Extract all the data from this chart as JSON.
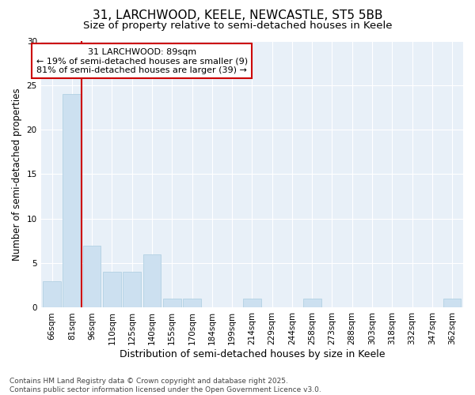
{
  "title": "31, LARCHWOOD, KEELE, NEWCASTLE, ST5 5BB",
  "subtitle": "Size of property relative to semi-detached houses in Keele",
  "xlabel": "Distribution of semi-detached houses by size in Keele",
  "ylabel": "Number of semi-detached properties",
  "categories": [
    "66sqm",
    "81sqm",
    "96sqm",
    "110sqm",
    "125sqm",
    "140sqm",
    "155sqm",
    "170sqm",
    "184sqm",
    "199sqm",
    "214sqm",
    "229sqm",
    "244sqm",
    "258sqm",
    "273sqm",
    "288sqm",
    "303sqm",
    "318sqm",
    "332sqm",
    "347sqm",
    "362sqm"
  ],
  "values": [
    3,
    24,
    7,
    4,
    4,
    6,
    1,
    1,
    0,
    0,
    1,
    0,
    0,
    1,
    0,
    0,
    0,
    0,
    0,
    0,
    1
  ],
  "bar_color": "#cce0f0",
  "bar_edge_color": "#aacce0",
  "red_line_x": 1.5,
  "annotation_title": "31 LARCHWOOD: 89sqm",
  "annotation_line1": "← 19% of semi-detached houses are smaller (9)",
  "annotation_line2": "81% of semi-detached houses are larger (39) →",
  "annotation_box_facecolor": "#ffffff",
  "annotation_box_edgecolor": "#cc0000",
  "red_line_color": "#cc0000",
  "ylim": [
    0,
    30
  ],
  "yticks": [
    0,
    5,
    10,
    15,
    20,
    25,
    30
  ],
  "background_color": "#ffffff",
  "plot_background": "#e8f0f8",
  "grid_color": "#ffffff",
  "footer": "Contains HM Land Registry data © Crown copyright and database right 2025.\nContains public sector information licensed under the Open Government Licence v3.0.",
  "title_fontsize": 11,
  "subtitle_fontsize": 9.5,
  "xlabel_fontsize": 9,
  "ylabel_fontsize": 8.5,
  "tick_fontsize": 7.5,
  "annotation_fontsize": 8,
  "footer_fontsize": 6.5
}
